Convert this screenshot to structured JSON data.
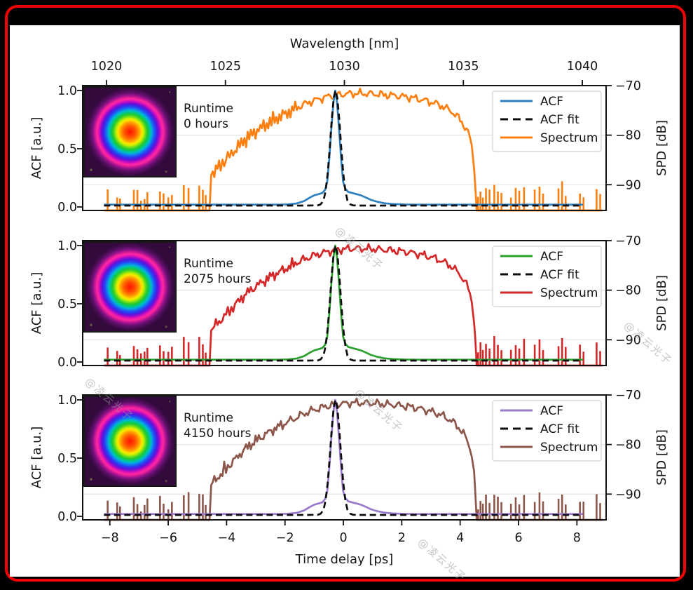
{
  "figure": {
    "background_color": "#000000",
    "border_color": "#f40000",
    "canvas_color": "#ffffff"
  },
  "watermark": {
    "text": "@凌云光子",
    "color": "#9a9a9a"
  },
  "chart_data": {
    "type": "line",
    "description": "Three stacked panels comparing laser autocorrelation (ACF), ACF fit and optical spectrum at runtimes 0, 2075 and 4150 hours; each panel has a beam-profile inset.",
    "axes": {
      "top": {
        "label": "Wavelength [nm]",
        "ticks": [
          1020,
          1025,
          1030,
          1035,
          1040
        ],
        "range": [
          1019,
          1041
        ]
      },
      "bottom": {
        "label": "Time delay [ps]",
        "ticks": [
          -8,
          -6,
          -4,
          -2,
          0,
          2,
          4,
          6,
          8
        ],
        "range": [
          -8.93,
          9.0
        ]
      },
      "left": {
        "label": "ACF [a.u.]",
        "ticks": [
          0.0,
          0.5,
          1.0
        ],
        "range": [
          0,
          1
        ]
      },
      "right": {
        "label": "SPD [dB]",
        "ticks": [
          -70,
          -80,
          -90
        ],
        "range": [
          -95.2,
          -70
        ]
      }
    },
    "grid": {
      "horizontal_at_spd_db": [
        -80,
        -90
      ],
      "color": "#e6e6e6"
    },
    "panels": [
      {
        "runtime_line1": "Runtime",
        "runtime_line2": "0 hours",
        "acf_color": "#2e7fbf",
        "acf_fit_color": "#0d0d0d",
        "spectrum_color": "#ff7f0e",
        "legend": [
          "ACF",
          "ACF fit",
          "Spectrum"
        ]
      },
      {
        "runtime_line1": "Runtime",
        "runtime_line2": "2075 hours",
        "acf_color": "#2ca02c",
        "acf_fit_color": "#0d0d0d",
        "spectrum_color": "#d62728",
        "legend": [
          "ACF",
          "ACF fit",
          "Spectrum"
        ]
      },
      {
        "runtime_line1": "Runtime",
        "runtime_line2": "4150 hours",
        "acf_color": "#9a79cc",
        "acf_fit_color": "#0d0d0d",
        "spectrum_color": "#8c564b",
        "legend": [
          "ACF",
          "ACF fit",
          "Spectrum"
        ]
      }
    ],
    "shared_series": {
      "spectrum_envelope_nm_db": [
        [
          1024.33,
          -95.2
        ],
        [
          1024.4,
          -88.0
        ],
        [
          1024.6,
          -87.0
        ],
        [
          1024.8,
          -86.0
        ],
        [
          1025.1,
          -84.5
        ],
        [
          1025.4,
          -83.0
        ],
        [
          1025.8,
          -81.0
        ],
        [
          1026.2,
          -79.5
        ],
        [
          1026.6,
          -78.2
        ],
        [
          1027.0,
          -77.0
        ],
        [
          1027.4,
          -76.0
        ],
        [
          1027.8,
          -75.0
        ],
        [
          1028.2,
          -74.0
        ],
        [
          1028.6,
          -73.2
        ],
        [
          1029.0,
          -72.6
        ],
        [
          1029.4,
          -72.1
        ],
        [
          1029.8,
          -71.8
        ],
        [
          1030.3,
          -71.6
        ],
        [
          1030.8,
          -71.6
        ],
        [
          1031.3,
          -71.7
        ],
        [
          1031.8,
          -71.9
        ],
        [
          1032.3,
          -72.1
        ],
        [
          1032.8,
          -72.4
        ],
        [
          1033.3,
          -72.9
        ],
        [
          1033.7,
          -73.4
        ],
        [
          1034.1,
          -74.1
        ],
        [
          1034.5,
          -75.2
        ],
        [
          1034.8,
          -76.5
        ],
        [
          1035.0,
          -77.8
        ],
        [
          1035.2,
          -79.5
        ],
        [
          1035.35,
          -82.0
        ],
        [
          1035.45,
          -86.0
        ],
        [
          1035.5,
          -90.0
        ],
        [
          1035.56,
          -95.2
        ]
      ],
      "spectrum_noise_floor_db": -95.2,
      "spectrum_span_nm": [
        1019.9,
        1040.85
      ],
      "noise_spikes_left_nm_db": [
        [
          1020.05,
          -90.5
        ],
        [
          1020.45,
          -91.5
        ],
        [
          1020.57,
          -92.0
        ],
        [
          1021.15,
          -90.2
        ],
        [
          1021.3,
          -91.0
        ],
        [
          1021.45,
          -92.5
        ],
        [
          1021.6,
          -91.8
        ],
        [
          1021.72,
          -90.6
        ],
        [
          1022.25,
          -90.3
        ],
        [
          1022.4,
          -91.2
        ],
        [
          1022.6,
          -92.0
        ],
        [
          1022.75,
          -91.0
        ],
        [
          1023.25,
          -89.3
        ],
        [
          1023.45,
          -89.6
        ],
        [
          1023.9,
          -89.2
        ],
        [
          1024.05,
          -90.0
        ],
        [
          1024.17,
          -91.5
        ]
      ],
      "noise_spikes_right_nm_db": [
        [
          1035.62,
          -92.0
        ],
        [
          1035.72,
          -90.5
        ],
        [
          1035.82,
          -91.5
        ],
        [
          1035.95,
          -89.8
        ],
        [
          1036.1,
          -90.8
        ],
        [
          1036.3,
          -89.2
        ],
        [
          1036.45,
          -90.3
        ],
        [
          1036.6,
          -91.0
        ],
        [
          1037.0,
          -91.5
        ],
        [
          1037.2,
          -90.0
        ],
        [
          1037.35,
          -91.0
        ],
        [
          1037.55,
          -89.5
        ],
        [
          1038.0,
          -90.5
        ],
        [
          1038.2,
          -89.3
        ],
        [
          1038.35,
          -91.0
        ],
        [
          1039.0,
          -90.2
        ],
        [
          1039.15,
          -89.0
        ],
        [
          1039.3,
          -91.3
        ],
        [
          1039.9,
          -90.8
        ],
        [
          1040.05,
          -91.5
        ],
        [
          1040.6,
          -89.8
        ],
        [
          1040.75,
          -91.2
        ]
      ],
      "acf_t_ps_value": [
        [
          -8.2,
          0.02
        ],
        [
          -2.2,
          0.02
        ],
        [
          -1.9,
          0.022
        ],
        [
          -1.6,
          0.03
        ],
        [
          -1.35,
          0.05
        ],
        [
          -1.15,
          0.08
        ],
        [
          -1.0,
          0.1
        ],
        [
          -0.85,
          0.11
        ],
        [
          -0.72,
          0.12
        ],
        [
          -0.62,
          0.15
        ],
        [
          -0.55,
          0.22
        ],
        [
          -0.48,
          0.42
        ],
        [
          -0.41,
          0.68
        ],
        [
          -0.34,
          0.9
        ],
        [
          -0.28,
          1.0
        ],
        [
          -0.22,
          0.9
        ],
        [
          -0.15,
          0.68
        ],
        [
          -0.08,
          0.42
        ],
        [
          -0.01,
          0.22
        ],
        [
          0.06,
          0.16
        ],
        [
          0.16,
          0.13
        ],
        [
          0.3,
          0.12
        ],
        [
          0.45,
          0.11
        ],
        [
          0.6,
          0.1
        ],
        [
          0.78,
          0.08
        ],
        [
          0.95,
          0.06
        ],
        [
          1.15,
          0.045
        ],
        [
          1.4,
          0.032
        ],
        [
          1.7,
          0.025
        ],
        [
          2.1,
          0.021
        ],
        [
          2.5,
          0.02
        ],
        [
          8.2,
          0.02
        ]
      ],
      "acf_fit_t_ps_value": [
        [
          -8.2,
          0.012
        ],
        [
          -1.2,
          0.012
        ],
        [
          -1.0,
          0.013
        ],
        [
          -0.88,
          0.013
        ],
        [
          -0.78,
          0.022
        ],
        [
          -0.68,
          0.055
        ],
        [
          -0.61,
          0.135
        ],
        [
          -0.54,
          0.28
        ],
        [
          -0.47,
          0.5
        ],
        [
          -0.4,
          0.75
        ],
        [
          -0.33,
          0.94
        ],
        [
          -0.27,
          1.0
        ],
        [
          -0.21,
          0.94
        ],
        [
          -0.14,
          0.75
        ],
        [
          -0.07,
          0.5
        ],
        [
          0.0,
          0.28
        ],
        [
          0.07,
          0.135
        ],
        [
          0.14,
          0.055
        ],
        [
          0.24,
          0.022
        ],
        [
          0.34,
          0.013
        ],
        [
          0.5,
          0.012
        ],
        [
          8.2,
          0.012
        ]
      ],
      "acf_peak_center_ps": -0.27,
      "acf_fwhm_ps": 0.42,
      "spectrum_plateau_db": -71.6
    }
  }
}
